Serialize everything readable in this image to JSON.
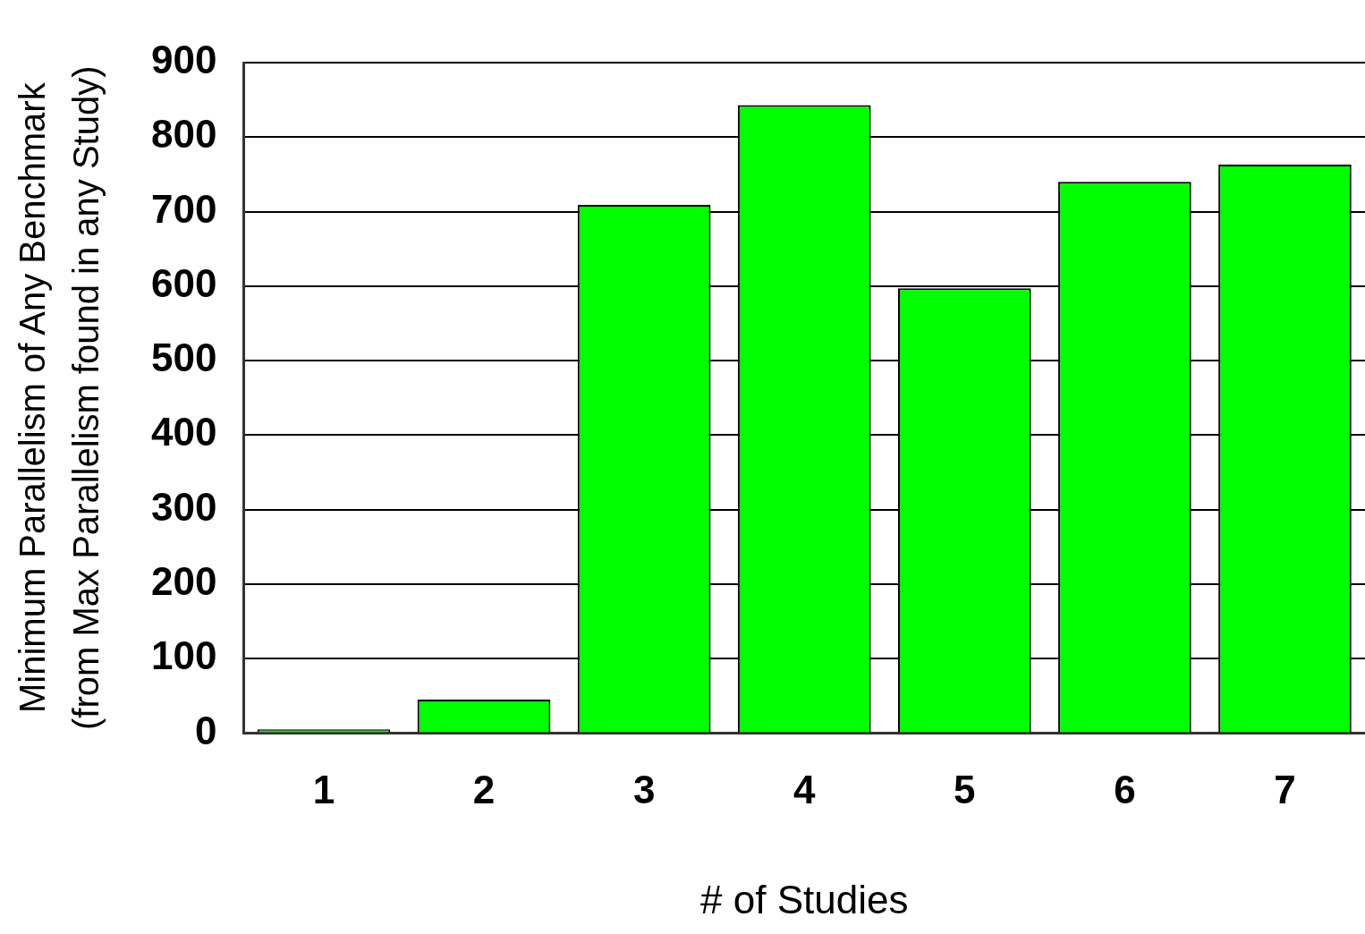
{
  "chart_data": {
    "type": "bar",
    "xlabel": "# of Studies",
    "ylabel": "Minimum Parallelism of Any Benchmark\n(from Max Parallelism found in any Study)",
    "categories": [
      "1",
      "2",
      "3",
      "4",
      "5",
      "6",
      "7"
    ],
    "values": [
      5,
      45,
      709,
      843,
      597,
      740,
      763
    ],
    "color": "#00ff00",
    "ylim": [
      0,
      900
    ],
    "yticks": [
      0,
      100,
      200,
      300,
      400,
      500,
      600,
      700,
      800,
      900
    ],
    "grid": "y"
  }
}
